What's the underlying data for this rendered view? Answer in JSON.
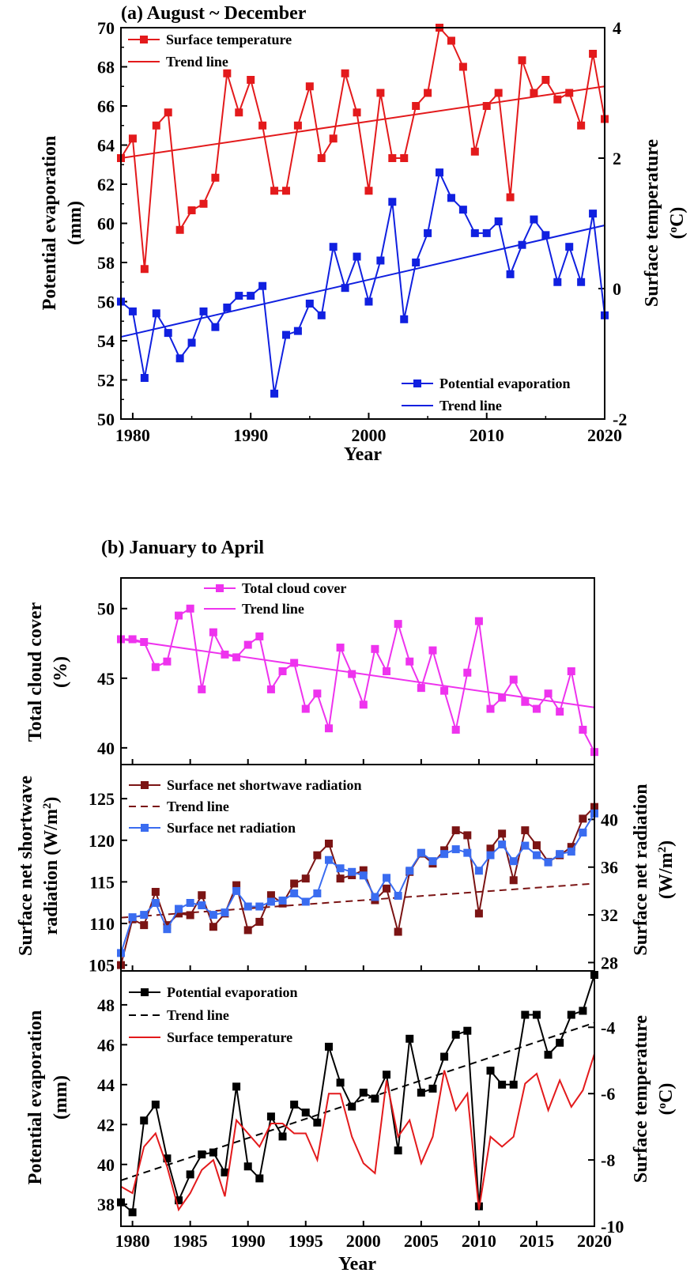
{
  "chart_data": [
    {
      "id": "a",
      "type": "line",
      "title": "(a) August ~ December",
      "xlabel": "Year",
      "ylabel_left": [
        "Potential evaporation",
        "(mm)"
      ],
      "ylabel_right": "Surface temperature",
      "ylabel_right_unit": "C",
      "ylabel_right_sup": "o",
      "xlim": [
        1979,
        2020
      ],
      "ylim_left": [
        50,
        70
      ],
      "ylim_right": [
        -2,
        4
      ],
      "xticks": [
        1980,
        1990,
        2000,
        2010,
        2020
      ],
      "yticks_left": [
        50,
        52,
        54,
        56,
        58,
        60,
        62,
        64,
        66,
        68,
        70
      ],
      "yticks_right": [
        -2,
        0,
        2,
        4
      ],
      "x": [
        1979,
        1980,
        1981,
        1982,
        1983,
        1984,
        1985,
        1986,
        1987,
        1988,
        1989,
        1990,
        1991,
        1992,
        1993,
        1994,
        1995,
        1996,
        1997,
        1998,
        1999,
        2000,
        2001,
        2002,
        2003,
        2004,
        2005,
        2006,
        2007,
        2008,
        2009,
        2010,
        2011,
        2012,
        2013,
        2014,
        2015,
        2016,
        2017,
        2018,
        2019,
        2020
      ],
      "series": [
        {
          "name": "Surface temperature",
          "axis": "right",
          "color": "#e31a1c",
          "marker": "square",
          "values": [
            2.0,
            2.3,
            0.3,
            2.5,
            2.7,
            0.9,
            1.2,
            1.3,
            1.7,
            3.3,
            2.7,
            3.2,
            2.5,
            1.5,
            1.5,
            2.5,
            3.1,
            2.0,
            2.3,
            3.3,
            2.7,
            1.5,
            3.0,
            2.0,
            2.0,
            2.8,
            3.0,
            4.0,
            3.8,
            3.4,
            2.1,
            2.8,
            3.0,
            1.4,
            3.5,
            3.0,
            3.2,
            2.9,
            3.0,
            2.5,
            3.6,
            2.6
          ]
        },
        {
          "name": "Trend line",
          "axis": "right",
          "color": "#e31a1c",
          "trend": [
            2.0,
            3.1
          ]
        },
        {
          "name": "Potential evaporation",
          "axis": "left",
          "color": "#1020e0",
          "marker": "square",
          "values": [
            56.0,
            55.5,
            52.1,
            55.4,
            54.4,
            53.1,
            53.9,
            55.5,
            54.7,
            55.7,
            56.3,
            56.3,
            56.8,
            51.3,
            54.3,
            54.5,
            55.9,
            55.3,
            58.8,
            56.7,
            58.3,
            56.0,
            58.1,
            61.1,
            55.1,
            58.0,
            59.5,
            62.6,
            61.3,
            60.7,
            59.5,
            59.5,
            60.1,
            57.4,
            58.9,
            60.2,
            59.4,
            57.0,
            58.8,
            57.0,
            60.5,
            55.3
          ]
        },
        {
          "name": "Trend line",
          "axis": "left",
          "color": "#1020e0",
          "trend": [
            54.2,
            59.9
          ]
        }
      ]
    },
    {
      "id": "b",
      "type": "line",
      "title": "(b) January to April",
      "xlabel": "Year",
      "xlim": [
        1979,
        2020
      ],
      "xticks": [
        1980,
        1985,
        1990,
        1995,
        2000,
        2005,
        2010,
        2015,
        2020
      ],
      "x": [
        1979,
        1980,
        1981,
        1982,
        1983,
        1984,
        1985,
        1986,
        1987,
        1988,
        1989,
        1990,
        1991,
        1992,
        1993,
        1994,
        1995,
        1996,
        1997,
        1998,
        1999,
        2000,
        2001,
        2002,
        2003,
        2004,
        2005,
        2006,
        2007,
        2008,
        2009,
        2010,
        2011,
        2012,
        2013,
        2014,
        2015,
        2016,
        2017,
        2018,
        2019,
        2020
      ],
      "panels": [
        {
          "ylabel_left": [
            "Total cloud cover",
            "(%)"
          ],
          "ylim_left": [
            38.8,
            52.2
          ],
          "yticks_left": [
            40,
            45,
            50
          ],
          "series": [
            {
              "name": "Total cloud cover",
              "axis": "left",
              "color": "#ee33ee",
              "marker": "square",
              "values": [
                47.8,
                47.8,
                47.6,
                45.8,
                46.2,
                49.5,
                50.0,
                44.2,
                48.3,
                46.7,
                46.5,
                47.4,
                48.0,
                44.2,
                45.5,
                46.1,
                42.8,
                43.9,
                41.4,
                47.2,
                45.3,
                43.1,
                47.1,
                45.5,
                48.9,
                46.2,
                44.3,
                47.0,
                44.1,
                41.3,
                45.4,
                49.1,
                42.8,
                43.6,
                44.9,
                43.3,
                42.8,
                43.9,
                42.6,
                45.5,
                41.3,
                39.7
              ]
            },
            {
              "name": "Trend line",
              "axis": "left",
              "color": "#ee33ee",
              "trend": [
                47.8,
                42.9
              ]
            }
          ]
        },
        {
          "ylabel_left": [
            "Surface net shortwave",
            "radiation (W/m",
            ")"
          ],
          "ylabel_left_sup": "2",
          "ylabel_right": [
            "Surface net radiation",
            "(W/m",
            ")"
          ],
          "ylabel_right_sup": "2",
          "ylim_left": [
            104.3,
            129.1
          ],
          "ylim_right": [
            27.3,
            44.6
          ],
          "yticks_left": [
            105,
            110,
            115,
            120,
            125
          ],
          "yticks_right": [
            28,
            32,
            36,
            40
          ],
          "series": [
            {
              "name": "Surface net shortwave radiation",
              "axis": "left",
              "color": "#7b1414",
              "marker": "square",
              "values": [
                105.0,
                110.5,
                109.8,
                113.8,
                109.8,
                111.2,
                111.0,
                113.4,
                109.6,
                111.2,
                114.6,
                109.2,
                110.2,
                113.4,
                112.4,
                114.8,
                115.4,
                118.2,
                119.6,
                115.4,
                115.8,
                116.4,
                112.8,
                114.2,
                109.0,
                116.2,
                118.4,
                117.2,
                118.8,
                121.2,
                120.6,
                111.2,
                119.0,
                120.8,
                115.2,
                121.2,
                119.4,
                117.4,
                118.2,
                119.2,
                122.6,
                124.0
              ]
            },
            {
              "name": "Trend line",
              "axis": "left",
              "color": "#7b1414",
              "dashed": true,
              "trend": [
                110.7,
                114.8
              ]
            },
            {
              "name": "Surface net radiation",
              "axis": "right",
              "color": "#3a6cf0",
              "marker": "square",
              "values": [
                28.8,
                31.8,
                32.0,
                33.0,
                30.8,
                32.5,
                33.0,
                32.8,
                32.0,
                32.2,
                34.0,
                32.7,
                32.7,
                33.1,
                33.2,
                33.8,
                33.1,
                33.8,
                36.6,
                35.9,
                35.6,
                35.3,
                33.5,
                35.1,
                33.6,
                35.7,
                37.2,
                36.5,
                37.1,
                37.5,
                37.2,
                35.7,
                37.0,
                37.9,
                36.5,
                37.8,
                37.0,
                36.4,
                37.1,
                37.3,
                38.9,
                40.5
              ]
            }
          ]
        },
        {
          "ylabel_left": [
            "Potential evaporation",
            "(mm)"
          ],
          "ylabel_right": "Surface temperature",
          "ylabel_right_unit": "C",
          "ylabel_right_sup": "o",
          "ylim_left": [
            36.9,
            49.7
          ],
          "ylim_right": [
            -10,
            -2.3
          ],
          "yticks_left": [
            38,
            40,
            42,
            44,
            46,
            48
          ],
          "yticks_right": [
            -10,
            -8,
            -6,
            -4
          ],
          "series": [
            {
              "name": "Potential evaporation",
              "axis": "left",
              "color": "#000000",
              "marker": "square",
              "values": [
                38.1,
                37.6,
                42.2,
                43.0,
                40.3,
                38.2,
                39.5,
                40.5,
                40.6,
                39.6,
                43.9,
                39.9,
                39.3,
                42.4,
                41.4,
                43.0,
                42.6,
                42.1,
                45.9,
                44.1,
                42.9,
                43.6,
                43.3,
                44.5,
                40.7,
                46.3,
                43.6,
                43.8,
                45.4,
                46.5,
                46.7,
                37.9,
                44.7,
                44.0,
                44.0,
                47.5,
                47.5,
                45.5,
                46.1,
                47.5,
                47.7,
                49.5
              ]
            },
            {
              "name": "Trend line",
              "axis": "left",
              "color": "#000000",
              "dashed": true,
              "trend": [
                39.2,
                47.1
              ]
            },
            {
              "name": "Surface temperature",
              "axis": "right",
              "color": "#e31a1c",
              "values": [
                -8.8,
                -9.0,
                -7.6,
                -7.2,
                -8.2,
                -9.5,
                -9.0,
                -8.3,
                -8.0,
                -9.1,
                -6.8,
                -7.2,
                -7.6,
                -6.9,
                -6.9,
                -7.2,
                -7.2,
                -8.0,
                -6.0,
                -6.0,
                -7.3,
                -8.1,
                -8.4,
                -5.6,
                -7.3,
                -6.8,
                -8.1,
                -7.3,
                -5.3,
                -6.5,
                -6.0,
                -9.5,
                -7.3,
                -7.6,
                -7.3,
                -5.7,
                -5.4,
                -6.5,
                -5.6,
                -6.4,
                -5.9,
                -4.8
              ]
            }
          ]
        }
      ]
    }
  ]
}
